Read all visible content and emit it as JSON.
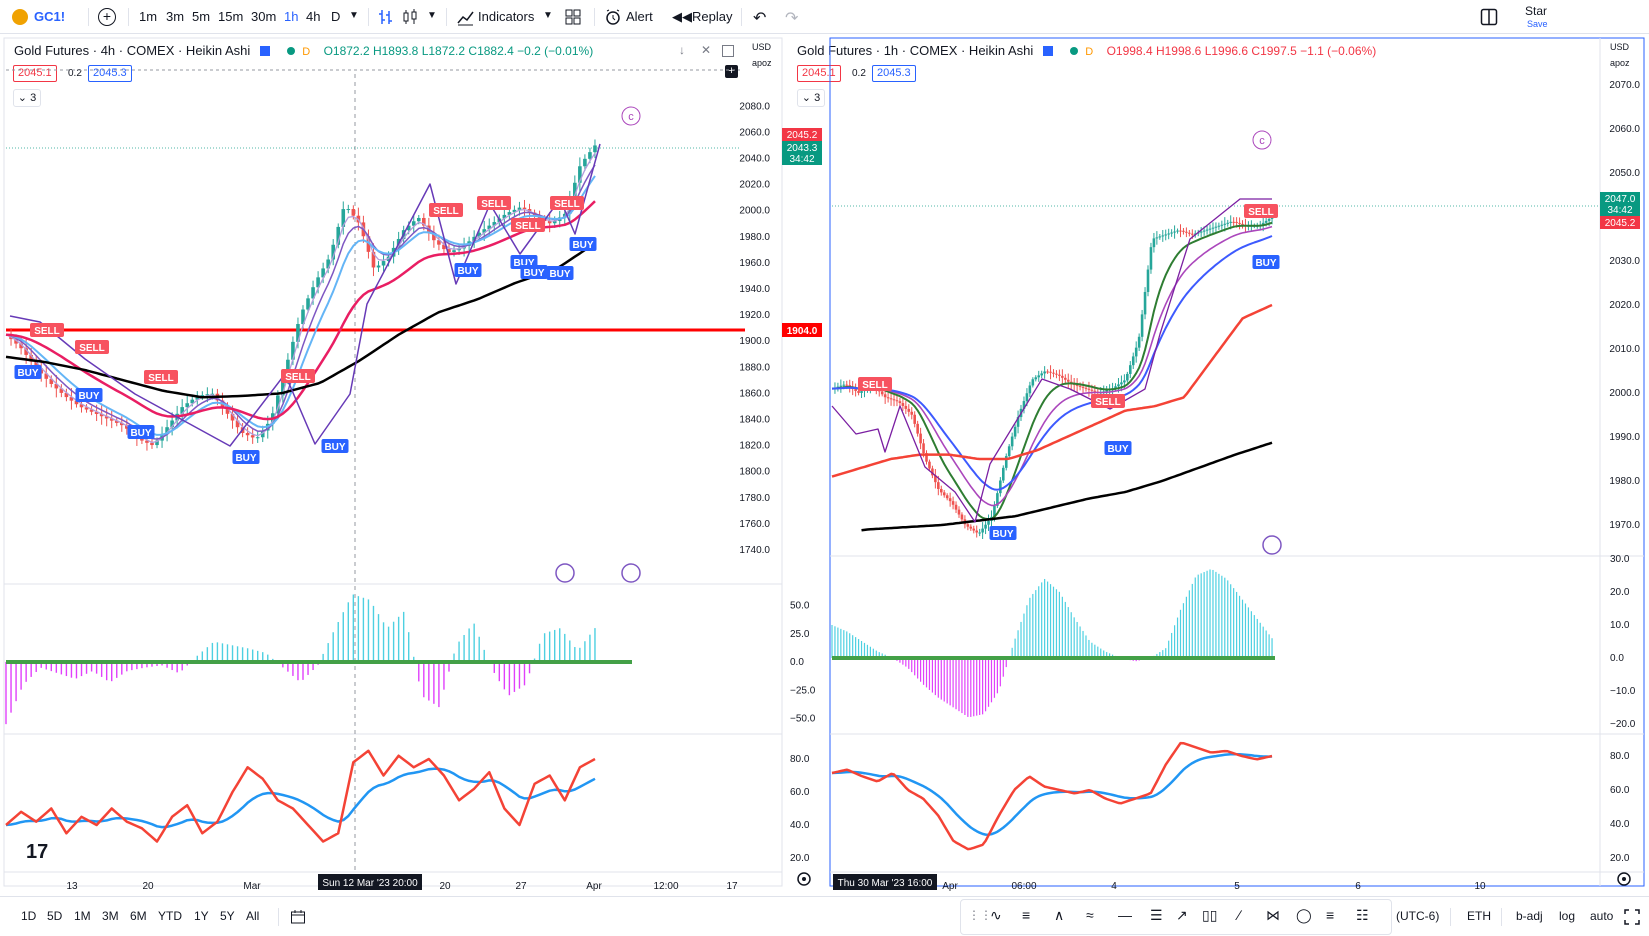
{
  "toolbar": {
    "symbol": "GC1!",
    "intervals": [
      "1m",
      "3m",
      "5m",
      "15m",
      "30m",
      "1h",
      "4h",
      "D"
    ],
    "active_interval": "1h",
    "indicators_label": "Indicators",
    "alert_label": "Alert",
    "replay_label": "Replay",
    "star_label": "Star",
    "save_label": "Save"
  },
  "left_chart": {
    "title": "Gold Futures · 4h · COMEX · Heikin Ashi",
    "status": "D",
    "ohlc": {
      "o": "O1872.2",
      "h": "H1893.8",
      "l": "L1872.2",
      "c": "C1882.4",
      "chg": "−0.2 (−0.01%)"
    },
    "sell_price": "2045.1",
    "spread": "0.2",
    "buy_price": "2045.3",
    "count": "3",
    "currency": "USD",
    "unit": "apoz",
    "price_ticks": [
      "2080.0",
      "2060.0",
      "2040.0",
      "2020.0",
      "2000.0",
      "1980.0",
      "1960.0",
      "1940.0",
      "1920.0",
      "1900.0",
      "1880.0",
      "1860.0",
      "1840.0",
      "1820.0",
      "1800.0",
      "1780.0",
      "1760.0",
      "1740.0"
    ],
    "price_labels": {
      "top": "2045.2",
      "mid": "2043.3",
      "countdown": "34:42",
      "level": "1904.0"
    },
    "osc_ticks": [
      "50.0",
      "25.0",
      "0.0",
      "−25.0",
      "−50.0"
    ],
    "rsi_ticks": [
      "80.0",
      "60.0",
      "40.0",
      "20.0"
    ],
    "time_ticks": [
      "13",
      "20",
      "Mar",
      "20",
      "27",
      "Apr",
      "12:00",
      "17"
    ],
    "crosshair_time": "Sun 12 Mar '23  20:00",
    "signals": {
      "sell": [
        "SELL",
        "SELL",
        "SELL",
        "SELL",
        "SELL",
        "SELL",
        "SELL",
        "SELL"
      ],
      "buy": [
        "BUY",
        "BUY",
        "BUY",
        "BUY",
        "BUY",
        "BUY",
        "BUY",
        "BUY",
        "BUY",
        "BUY"
      ]
    }
  },
  "right_chart": {
    "title": "Gold Futures · 1h · COMEX · Heikin Ashi",
    "status": "D",
    "ohlc": {
      "o": "O1998.4",
      "h": "H1998.6",
      "l": "L1996.6",
      "c": "C1997.5",
      "chg": "−1.1 (−0.06%)"
    },
    "sell_price": "2045.1",
    "spread": "0.2",
    "buy_price": "2045.3",
    "count": "3",
    "currency": "USD",
    "unit": "apoz",
    "price_ticks": [
      "2070.0",
      "2060.0",
      "2050.0",
      "2040.0",
      "2030.0",
      "2020.0",
      "2010.0",
      "2000.0",
      "1990.0",
      "1980.0",
      "1970.0"
    ],
    "price_labels": {
      "top": "2047.0",
      "countdown": "34:42",
      "mid": "2045.2"
    },
    "osc_ticks": [
      "30.0",
      "20.0",
      "10.0",
      "0.0",
      "−10.0",
      "−20.0"
    ],
    "rsi_ticks": [
      "80.0",
      "60.0",
      "40.0",
      "20.0"
    ],
    "time_ticks": [
      "Apr",
      "06:00",
      "4",
      "5",
      "6",
      "10"
    ],
    "crosshair_time": "Thu 30 Mar '23  16:00",
    "signals": {
      "sell": [
        "SELL",
        "SELL",
        "SELL"
      ],
      "buy": [
        "BUY",
        "BUY",
        "BUY"
      ]
    }
  },
  "bottom": {
    "ranges": [
      "1D",
      "5D",
      "1M",
      "3M",
      "6M",
      "YTD",
      "1Y",
      "5Y",
      "All"
    ],
    "timezone": "(UTC-6)",
    "session": "ETH",
    "badj": "b-adj",
    "log": "log",
    "auto": "auto"
  },
  "colors": {
    "green": "#26a69a",
    "red": "#ef5350",
    "blue": "#2962ff",
    "sell_bg": "#f7525f",
    "buy_bg": "#2962ff"
  }
}
